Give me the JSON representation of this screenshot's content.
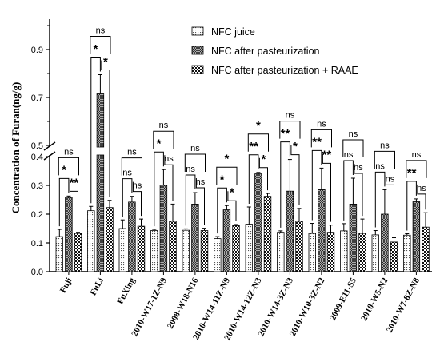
{
  "chart_data": {
    "type": "bar",
    "ylabel": "Concentration of Furan(ng/g)",
    "categories": [
      "Fuji",
      "FuLi",
      "FuXing",
      "2010-W17-1Z-N9",
      "2008-W18-N16",
      "2010-W14-11Z-N9",
      "2010-W14-12Z-N3",
      "2010-W14-3Z-N3",
      "2010-W10-3Z-N2",
      "2009-E11-S5",
      "2010-W5-N2",
      "2010-W7-8Z-N8"
    ],
    "y_axis": {
      "broken": true,
      "lower_range": [
        0.0,
        0.4
      ],
      "upper_range": [
        0.5,
        1.0
      ],
      "ticks": [
        "0.0",
        "0.1",
        "0.2",
        "0.3",
        "0.4",
        "0.5",
        "0.7",
        "0.9"
      ]
    },
    "legend_position": "top-right",
    "series": [
      {
        "name": "NFC juice",
        "pattern": "dots",
        "values": [
          0.122,
          0.212,
          0.15,
          0.143,
          0.144,
          0.115,
          0.165,
          0.137,
          0.133,
          0.142,
          0.128,
          0.127
        ],
        "errors": [
          0.025,
          0.015,
          0.03,
          0.004,
          0.005,
          0.007,
          0.06,
          0.005,
          0.035,
          0.025,
          0.015,
          0.005
        ]
      },
      {
        "name": "NFC after pasteurization",
        "pattern": "crosshatch",
        "values": [
          0.258,
          0.715,
          0.242,
          0.3,
          0.235,
          0.215,
          0.34,
          0.28,
          0.285,
          0.235,
          0.2,
          0.243
        ],
        "errors": [
          0.005,
          0.08,
          0.02,
          0.055,
          0.04,
          0.015,
          0.005,
          0.11,
          0.075,
          0.09,
          0.085,
          0.01
        ]
      },
      {
        "name": "NFC after pasteurization + RAAE",
        "pattern": "checker",
        "values": [
          0.133,
          0.223,
          0.158,
          0.175,
          0.143,
          0.16,
          0.262,
          0.175,
          0.137,
          0.133,
          0.103,
          0.155
        ],
        "errors": [
          0.004,
          0.025,
          0.025,
          0.06,
          0.008,
          0.004,
          0.01,
          0.045,
          0.025,
          0.05,
          0.015,
          0.05
        ]
      }
    ],
    "significance": [
      {
        "short_1_2": "*",
        "short_2_3": "**",
        "long_1_3": "ns"
      },
      {
        "short_1_2": "*",
        "short_2_3": "*",
        "long_1_3": "ns"
      },
      {
        "short_1_2": "ns",
        "short_2_3": "ns",
        "long_1_3": "ns"
      },
      {
        "short_1_2": "*",
        "short_2_3": "ns",
        "long_1_3": "ns"
      },
      {
        "short_1_2": "ns",
        "short_2_3": "ns",
        "long_1_3": "ns"
      },
      {
        "short_1_2": "*",
        "short_2_3": "*",
        "long_1_3": "*"
      },
      {
        "short_1_2": "**",
        "short_2_3": "*",
        "long_1_3": "*"
      },
      {
        "short_1_2": "**",
        "short_2_3": "*",
        "long_1_3": "ns"
      },
      {
        "short_1_2": "**",
        "short_2_3": "**",
        "long_1_3": "ns"
      },
      {
        "short_1_2": "ns",
        "short_2_3": "ns",
        "long_1_3": "ns"
      },
      {
        "short_1_2": "ns",
        "short_2_3": "ns",
        "long_1_3": "ns"
      },
      {
        "short_1_2": "**",
        "short_2_3": "ns",
        "long_1_3": "ns"
      }
    ]
  }
}
